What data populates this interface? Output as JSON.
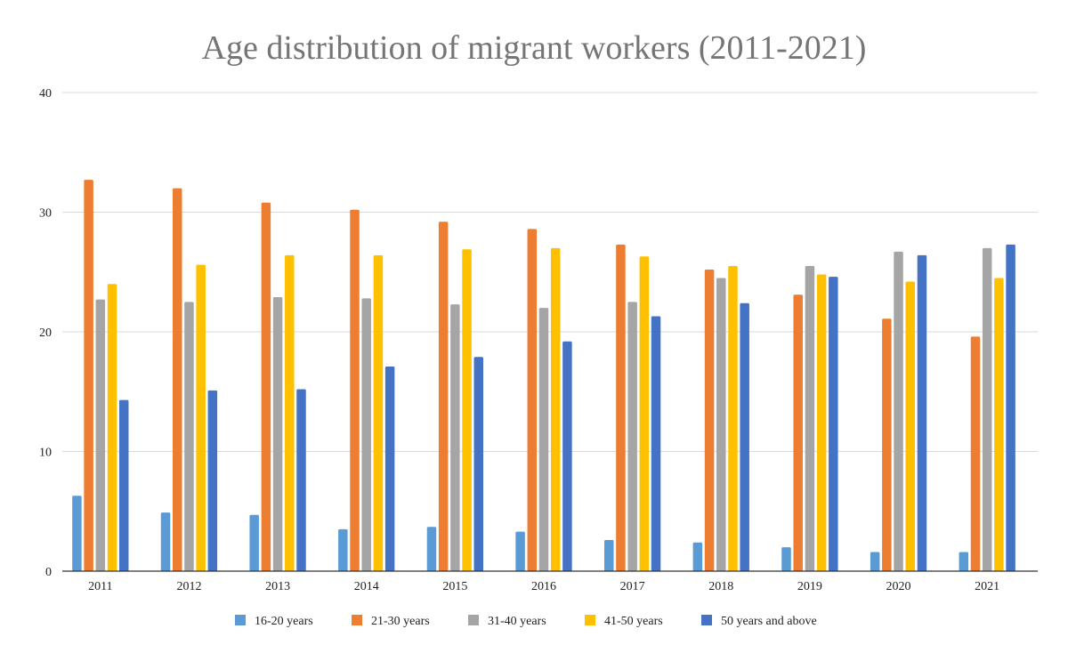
{
  "chart_data": {
    "type": "bar",
    "title": "Age distribution of migrant workers (2011-2021)",
    "xlabel": "",
    "ylabel": "",
    "categories": [
      "2011",
      "2012",
      "2013",
      "2014",
      "2015",
      "2016",
      "2017",
      "2018",
      "2019",
      "2020",
      "2021"
    ],
    "ylim": [
      0,
      40
    ],
    "yticks": [
      0,
      10,
      20,
      30,
      40
    ],
    "grid": true,
    "legend_position": "bottom",
    "series": [
      {
        "name": "16-20 years",
        "color": "#5B9BD5",
        "values": [
          6.3,
          4.9,
          4.7,
          3.5,
          3.7,
          3.3,
          2.6,
          2.4,
          2.0,
          1.6,
          1.6
        ]
      },
      {
        "name": "21-30 years",
        "color": "#ED7D31",
        "values": [
          32.7,
          32.0,
          30.8,
          30.2,
          29.2,
          28.6,
          27.3,
          25.2,
          23.1,
          21.1,
          19.6
        ]
      },
      {
        "name": "31-40 years",
        "color": "#A5A5A5",
        "values": [
          22.7,
          22.5,
          22.9,
          22.8,
          22.3,
          22.0,
          22.5,
          24.5,
          25.5,
          26.7,
          27.0
        ]
      },
      {
        "name": "41-50 years",
        "color": "#FFC000",
        "values": [
          24.0,
          25.6,
          26.4,
          26.4,
          26.9,
          27.0,
          26.3,
          25.5,
          24.8,
          24.2,
          24.5
        ]
      },
      {
        "name": "50 years and above",
        "color": "#4472C4",
        "values": [
          14.3,
          15.1,
          15.2,
          17.1,
          17.9,
          19.2,
          21.3,
          22.4,
          24.6,
          26.4,
          27.3
        ]
      }
    ]
  }
}
